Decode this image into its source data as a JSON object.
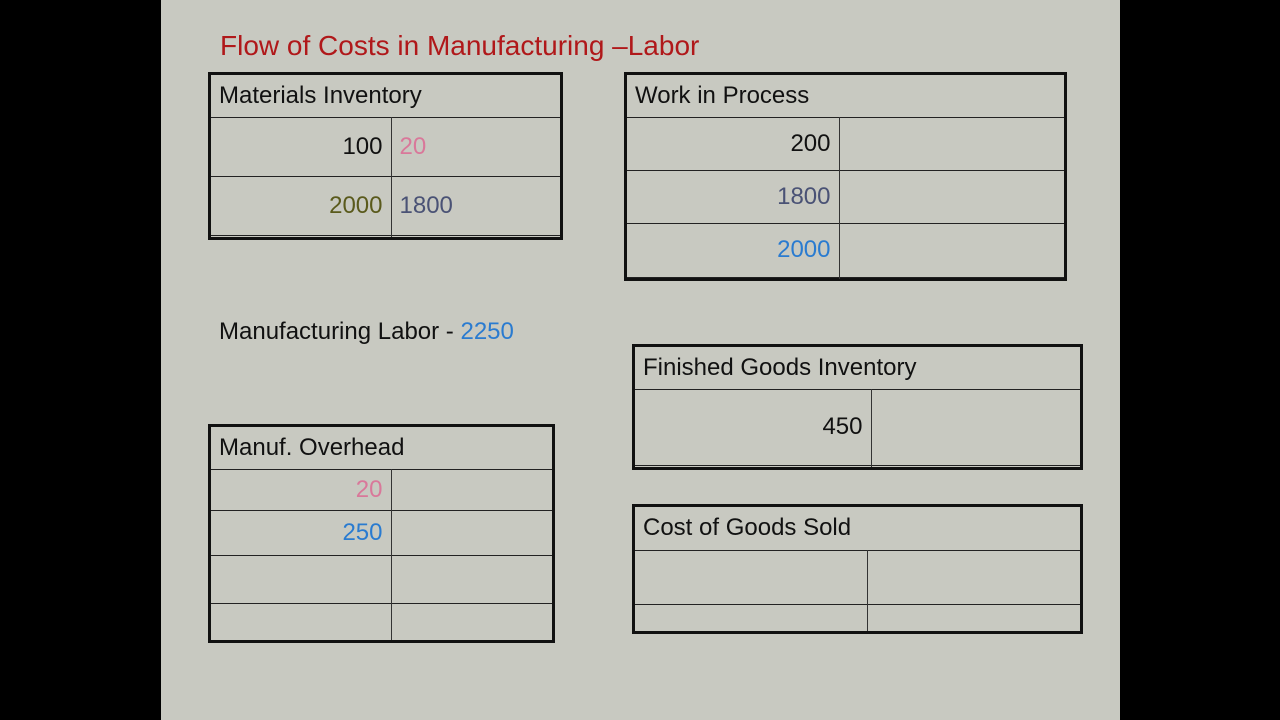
{
  "title": "Flow of Costs in Manufacturing –Labor",
  "labor": {
    "label": "Manufacturing Labor - ",
    "value": "2250",
    "value_color": "#2a7bd0"
  },
  "colors": {
    "title": "#b0181a",
    "pink": "#d9789a",
    "olive": "#5a5a1c",
    "slate": "#4a5275",
    "blue": "#2a7bd0",
    "background": "#c8c9c1"
  },
  "accounts": {
    "materials_inventory": {
      "title": "Materials Inventory",
      "rows": [
        {
          "debit": "100",
          "credit": "20"
        },
        {
          "debit": "2000",
          "credit": "1800"
        },
        {
          "debit": "",
          "credit": ""
        }
      ]
    },
    "work_in_process": {
      "title": "Work in Process",
      "rows": [
        {
          "debit": "200",
          "credit": ""
        },
        {
          "debit": "1800",
          "credit": ""
        },
        {
          "debit": "2000",
          "credit": ""
        },
        {
          "debit": "",
          "credit": ""
        }
      ]
    },
    "finished_goods": {
      "title": "Finished Goods Inventory",
      "rows": [
        {
          "debit": "450",
          "credit": ""
        },
        {
          "debit": "",
          "credit": ""
        }
      ]
    },
    "manuf_overhead": {
      "title": "Manuf. Overhead",
      "rows": [
        {
          "debit": "20",
          "credit": ""
        },
        {
          "debit": "250",
          "credit": ""
        },
        {
          "debit": "",
          "credit": ""
        },
        {
          "debit": "",
          "credit": ""
        }
      ]
    },
    "cost_of_goods_sold": {
      "title": "Cost of Goods Sold",
      "rows": [
        {
          "debit": "",
          "credit": ""
        },
        {
          "debit": "",
          "credit": ""
        }
      ]
    }
  }
}
